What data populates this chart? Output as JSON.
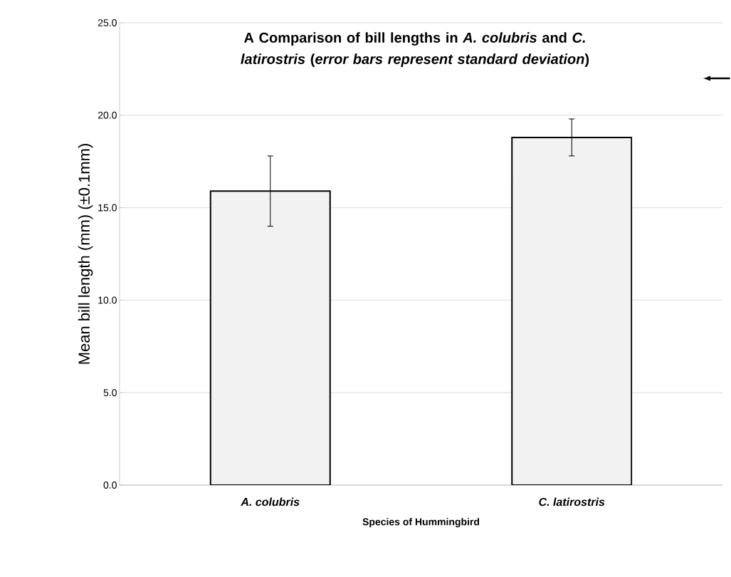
{
  "chart_data": {
    "type": "bar",
    "title": "A Comparison of bill lengths in *A. colubris* and *C. latirostris* (*error bars represent standard deviation*)",
    "xlabel": "Species of Hummingbird",
    "ylabel": "Mean bill length (mm) (±0.1mm)",
    "categories": [
      "A. colubris",
      "C. latirostris"
    ],
    "values": [
      15.9,
      18.8
    ],
    "errors": [
      1.9,
      1.0
    ],
    "color": "#f2f2f2",
    "ylim": [
      0,
      25
    ],
    "yticks": [
      {
        "value": 0,
        "label": "0.0"
      },
      {
        "value": 5,
        "label": "5.0"
      },
      {
        "value": 10,
        "label": "10.0"
      },
      {
        "value": 15,
        "label": "15.0"
      },
      {
        "value": 20,
        "label": "20.0"
      },
      {
        "value": 25,
        "label": "25.0"
      }
    ],
    "grid": "y"
  }
}
